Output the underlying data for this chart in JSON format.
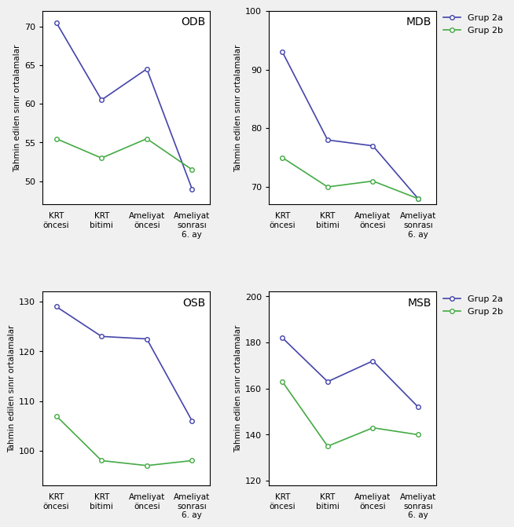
{
  "ODB": {
    "grup2a": [
      70.5,
      60.5,
      64.5,
      49.0
    ],
    "grup2b": [
      55.5,
      53.0,
      55.5,
      51.5
    ],
    "ylim": [
      47,
      72
    ],
    "yticks": [
      50,
      55,
      60,
      65,
      70
    ]
  },
  "MDB": {
    "grup2a": [
      93.0,
      78.0,
      77.0,
      68.0
    ],
    "grup2b": [
      75.0,
      70.0,
      71.0,
      68.0
    ],
    "ylim": [
      67,
      100
    ],
    "yticks": [
      70,
      80,
      90,
      100
    ]
  },
  "OSB": {
    "grup2a": [
      129.0,
      123.0,
      122.5,
      106.0
    ],
    "grup2b": [
      107.0,
      98.0,
      97.0,
      98.0
    ],
    "ylim": [
      93,
      132
    ],
    "yticks": [
      100,
      110,
      120,
      130
    ]
  },
  "MSB": {
    "grup2a": [
      182.0,
      163.0,
      172.0,
      152.0
    ],
    "grup2b": [
      163.0,
      135.0,
      143.0,
      140.0
    ],
    "ylim": [
      118,
      202
    ],
    "yticks": [
      120,
      140,
      160,
      180,
      200
    ]
  },
  "xticklabels": [
    "KRT\nöncesi",
    "KRT\nbitimi",
    "Ameliyat\nöncesi",
    "Ameliyat\nsonrası\n6. ay"
  ],
  "ylabel": "Tahmin edilen sınır ortalamalar",
  "color_2a": "#4444aa",
  "color_2b": "#44aa44",
  "legend_labels": [
    "Grup 2a",
    "Grup 2b"
  ],
  "background": "#f0f0f0"
}
